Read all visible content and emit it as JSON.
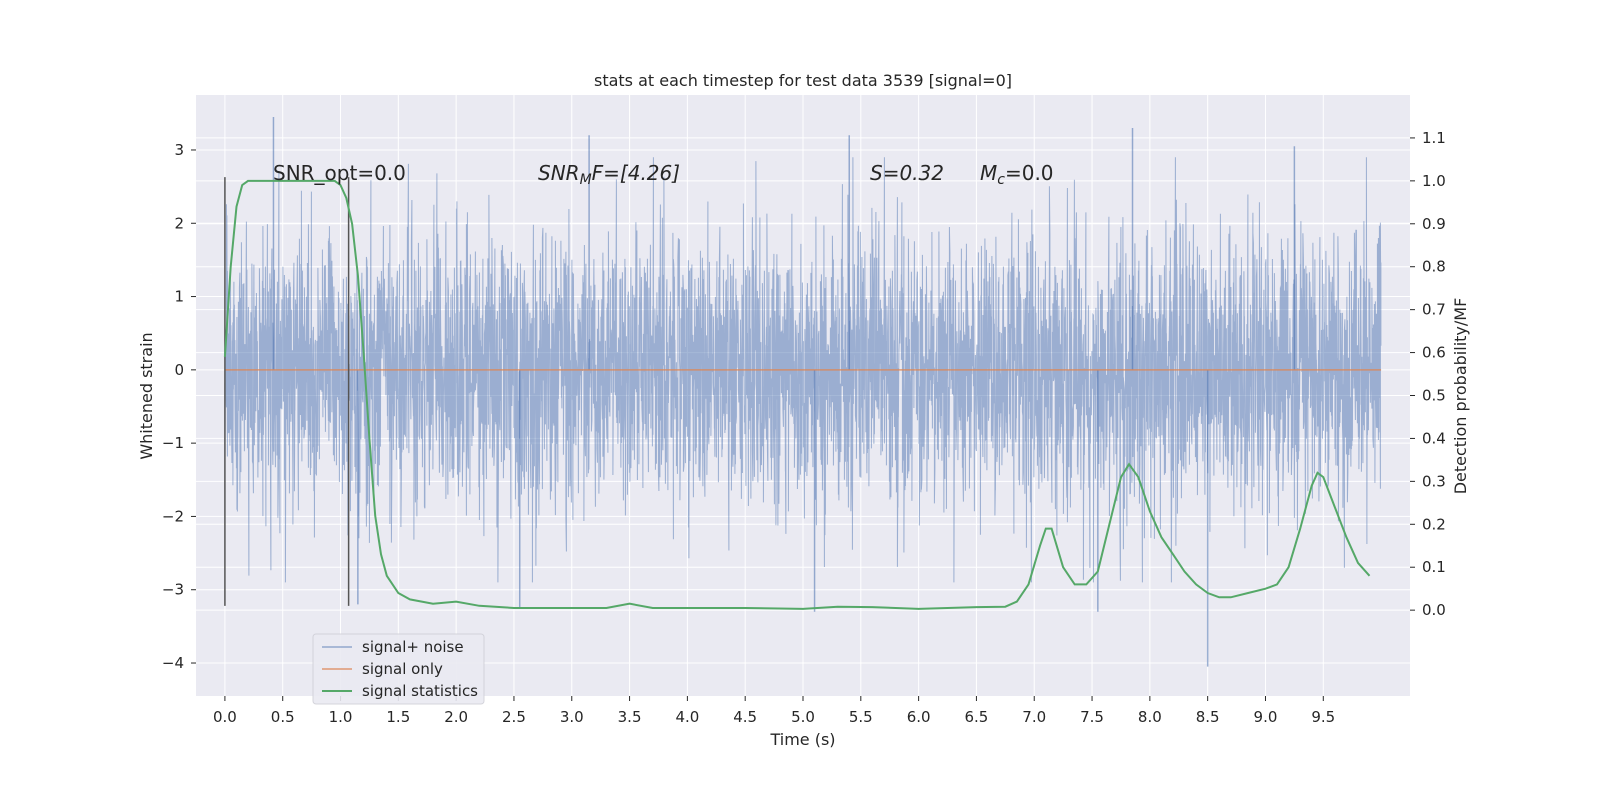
{
  "chart_data": {
    "type": "line",
    "title": "stats at each timestep for test data 3539 [signal=0]",
    "xlabel": "Time (s)",
    "ylabel": "Whitened strain",
    "y2label": "Detection probability/MF",
    "xlim": [
      -0.25,
      10.25
    ],
    "ylim": [
      -4.45,
      3.75
    ],
    "y2lim": [
      -0.2,
      1.2
    ],
    "xticks": [
      "0.0",
      "0.5",
      "1.0",
      "1.5",
      "2.0",
      "2.5",
      "3.0",
      "3.5",
      "4.0",
      "4.5",
      "5.0",
      "5.5",
      "6.0",
      "6.5",
      "7.0",
      "7.5",
      "8.0",
      "8.5",
      "9.0",
      "9.5"
    ],
    "yticks": [
      "3",
      "2",
      "1",
      "0",
      "−1",
      "−2",
      "−3",
      "−4"
    ],
    "y2ticks": [
      "1.1",
      "1.0",
      "0.9",
      "0.8",
      "0.7",
      "0.6",
      "0.5",
      "0.4",
      "0.3",
      "0.2",
      "0.1",
      "0.0"
    ],
    "grid": true,
    "legend_position": "lower-left",
    "colors": {
      "background": "#eaeaf2",
      "grid": "#ffffff",
      "noise": "#4c72b0",
      "signal": "#dd8452",
      "stats": "#55a868",
      "vline": "#555555"
    },
    "annotations": {
      "snr_opt": "SNR_opt=0.0",
      "snr_mf_base": "SNR",
      "snr_mf_sub": "M",
      "snr_mf_rest": "F=[4.26]",
      "s_label": "S=0.32",
      "mc_base": "M",
      "mc_sub": "c",
      "mc_rest": "=0.0"
    },
    "vlines": [
      0.0,
      1.07
    ],
    "series": [
      {
        "name": "signal+ noise",
        "kind": "noise",
        "duration": 10.0,
        "sample_rate": 2048,
        "std": 0.95,
        "notable_spikes": [
          [
            0.42,
            3.45
          ],
          [
            3.15,
            3.2
          ],
          [
            5.4,
            3.2
          ],
          [
            7.85,
            3.3
          ],
          [
            9.25,
            3.05
          ],
          [
            8.5,
            -4.05
          ],
          [
            2.55,
            -3.25
          ],
          [
            1.15,
            -3.2
          ],
          [
            5.1,
            -3.3
          ],
          [
            7.55,
            -3.3
          ]
        ]
      },
      {
        "name": "signal only",
        "kind": "flat",
        "x": [
          0.0,
          10.0
        ],
        "y": [
          0.0,
          0.0
        ]
      },
      {
        "name": "signal statistics",
        "kind": "stats",
        "axis": "right",
        "x": [
          0.0,
          0.05,
          0.1,
          0.15,
          0.2,
          0.3,
          0.5,
          0.7,
          0.85,
          0.95,
          1.0,
          1.05,
          1.1,
          1.15,
          1.2,
          1.25,
          1.3,
          1.35,
          1.4,
          1.5,
          1.6,
          1.8,
          2.0,
          2.2,
          2.5,
          3.0,
          3.3,
          3.5,
          3.7,
          4.0,
          4.5,
          5.0,
          5.3,
          5.6,
          6.0,
          6.5,
          6.75,
          6.85,
          6.95,
          7.05,
          7.1,
          7.15,
          7.25,
          7.35,
          7.45,
          7.55,
          7.65,
          7.75,
          7.82,
          7.9,
          8.0,
          8.1,
          8.2,
          8.3,
          8.4,
          8.5,
          8.6,
          8.7,
          8.85,
          9.0,
          9.1,
          9.2,
          9.3,
          9.4,
          9.45,
          9.5,
          9.6,
          9.7,
          9.8,
          9.9
        ],
        "y": [
          0.59,
          0.8,
          0.94,
          0.99,
          1.0,
          1.0,
          1.0,
          1.0,
          1.0,
          1.0,
          0.99,
          0.96,
          0.9,
          0.78,
          0.6,
          0.4,
          0.22,
          0.13,
          0.08,
          0.04,
          0.025,
          0.015,
          0.02,
          0.01,
          0.005,
          0.005,
          0.005,
          0.015,
          0.005,
          0.005,
          0.005,
          0.003,
          0.008,
          0.007,
          0.003,
          0.007,
          0.008,
          0.02,
          0.06,
          0.15,
          0.19,
          0.19,
          0.1,
          0.06,
          0.06,
          0.09,
          0.2,
          0.31,
          0.34,
          0.31,
          0.23,
          0.17,
          0.13,
          0.09,
          0.06,
          0.04,
          0.03,
          0.03,
          0.04,
          0.05,
          0.06,
          0.1,
          0.19,
          0.29,
          0.32,
          0.31,
          0.24,
          0.17,
          0.11,
          0.08
        ]
      }
    ]
  },
  "legend": {
    "items": [
      "signal+ noise",
      "signal only",
      "signal statistics"
    ]
  }
}
